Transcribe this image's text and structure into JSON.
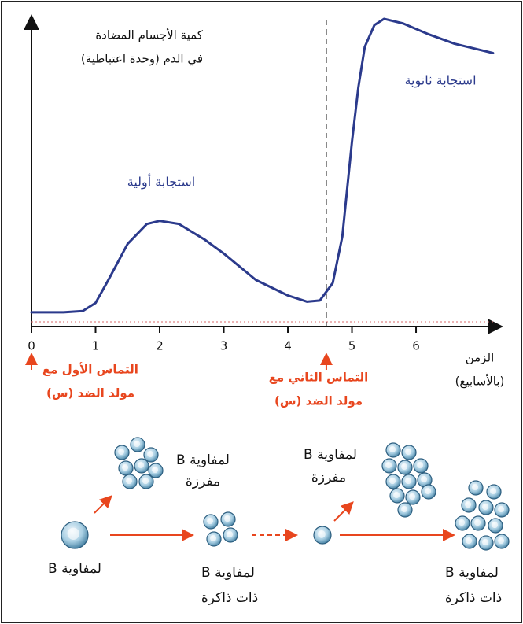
{
  "chart_data": {
    "type": "line",
    "y_label": [
      "كمية الأجسام المضادة",
      "في الدم (وحدة اعتباطية)"
    ],
    "x_label": [
      "الزمن",
      "(بالأسابيع)"
    ],
    "x": [
      0,
      0.5,
      0.8,
      1.0,
      1.2,
      1.5,
      1.8,
      2.0,
      2.3,
      2.7,
      3.0,
      3.5,
      4.0,
      4.3,
      4.5,
      4.7,
      4.85,
      5.0,
      5.1,
      5.2,
      5.35,
      5.5,
      5.8,
      6.2,
      6.6,
      7.2
    ],
    "series": [
      {
        "color": "#2b3a8c",
        "values": [
          4.6,
          4.6,
          5,
          7.6,
          15,
          26.6,
          33,
          34,
          33,
          28,
          23.5,
          15,
          10,
          8,
          8.4,
          14,
          29,
          59.5,
          77,
          90,
          97,
          99,
          97.5,
          94,
          91,
          88
        ]
      }
    ],
    "xlim": [
      0,
      7.3
    ],
    "ylim": [
      0,
      100
    ],
    "xticks": [
      0,
      1,
      2,
      3,
      4,
      5,
      6
    ],
    "annotations": [
      {
        "text": "استجابة أولية"
      },
      {
        "text": "استجابة ثانوية"
      }
    ],
    "exposures": [
      {
        "x": 0,
        "label": [
          "التماس الأول مع",
          "مولد الضد (س)"
        ]
      },
      {
        "x": 4.6,
        "label": [
          "التماس الثاني مع",
          "مولد الضد (س)"
        ]
      }
    ]
  },
  "diagram": {
    "cells": [
      {
        "label": [
          "لمفاوية B"
        ]
      },
      {
        "label": [
          "لمفاوية B",
          "مفرزة"
        ]
      },
      {
        "label": [
          "لمفاوية B",
          "ذات ذاكرة"
        ]
      },
      {
        "label": [
          "لمفاوية B",
          "مفرزة"
        ]
      },
      {
        "label": [
          "لمفاوية B",
          "ذات ذاكرة"
        ]
      }
    ]
  }
}
